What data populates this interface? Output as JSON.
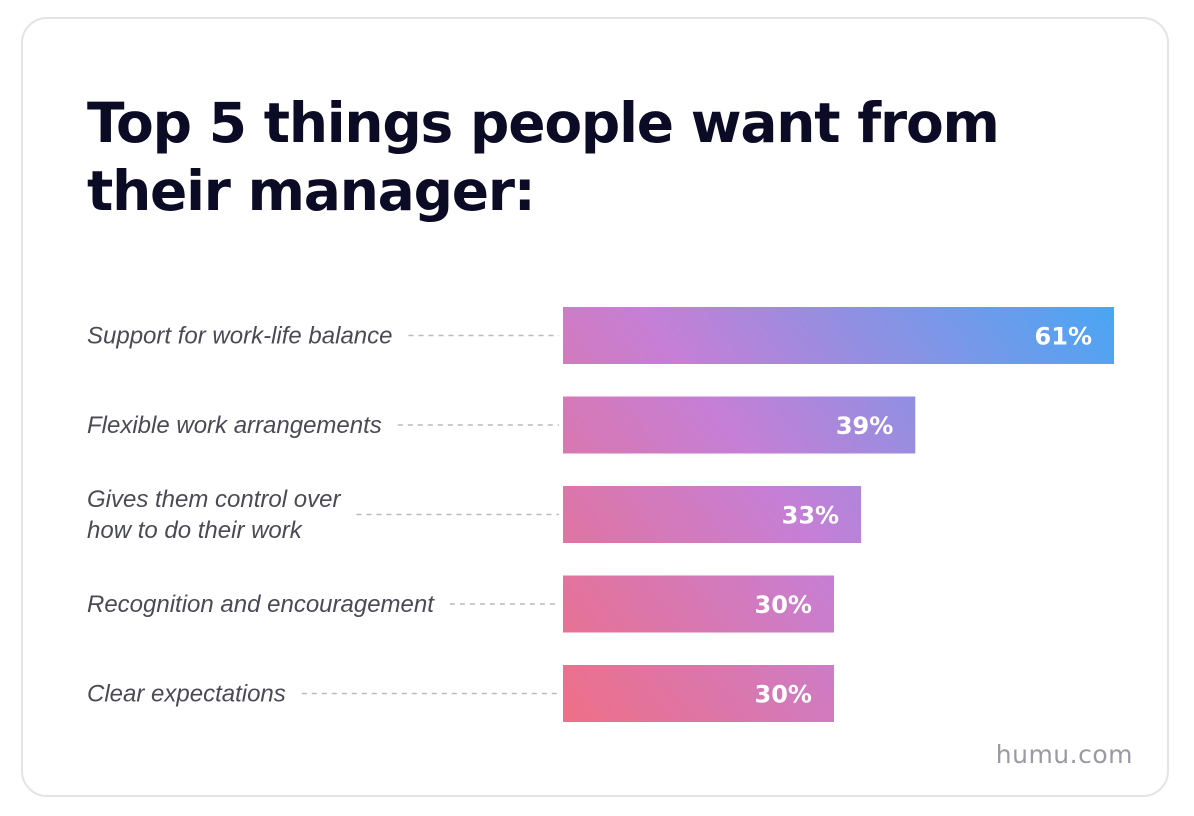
{
  "chart_data": {
    "type": "bar",
    "orientation": "horizontal",
    "title_lines": [
      "Top 5 things people want from",
      "their manager:"
    ],
    "categories": [
      [
        "Support for work-life balance"
      ],
      [
        "Flexible work arrangements"
      ],
      [
        "Gives them control over",
        "how to do their work"
      ],
      [
        "Recognition and encouragement"
      ],
      [
        "Clear expectations"
      ]
    ],
    "values": [
      61,
      39,
      33,
      30,
      30
    ],
    "value_labels": [
      "61%",
      "39%",
      "33%",
      "30%",
      "30%"
    ],
    "xlim": [
      0,
      61
    ],
    "grid": false,
    "legend": false,
    "colors": {
      "gradient_start": "#ee6f87",
      "gradient_mid": "#c57fd6",
      "gradient_end": "#4aa6f3",
      "title": "#0b0b26",
      "label": "#4a4a55"
    }
  },
  "source": "humu.com"
}
